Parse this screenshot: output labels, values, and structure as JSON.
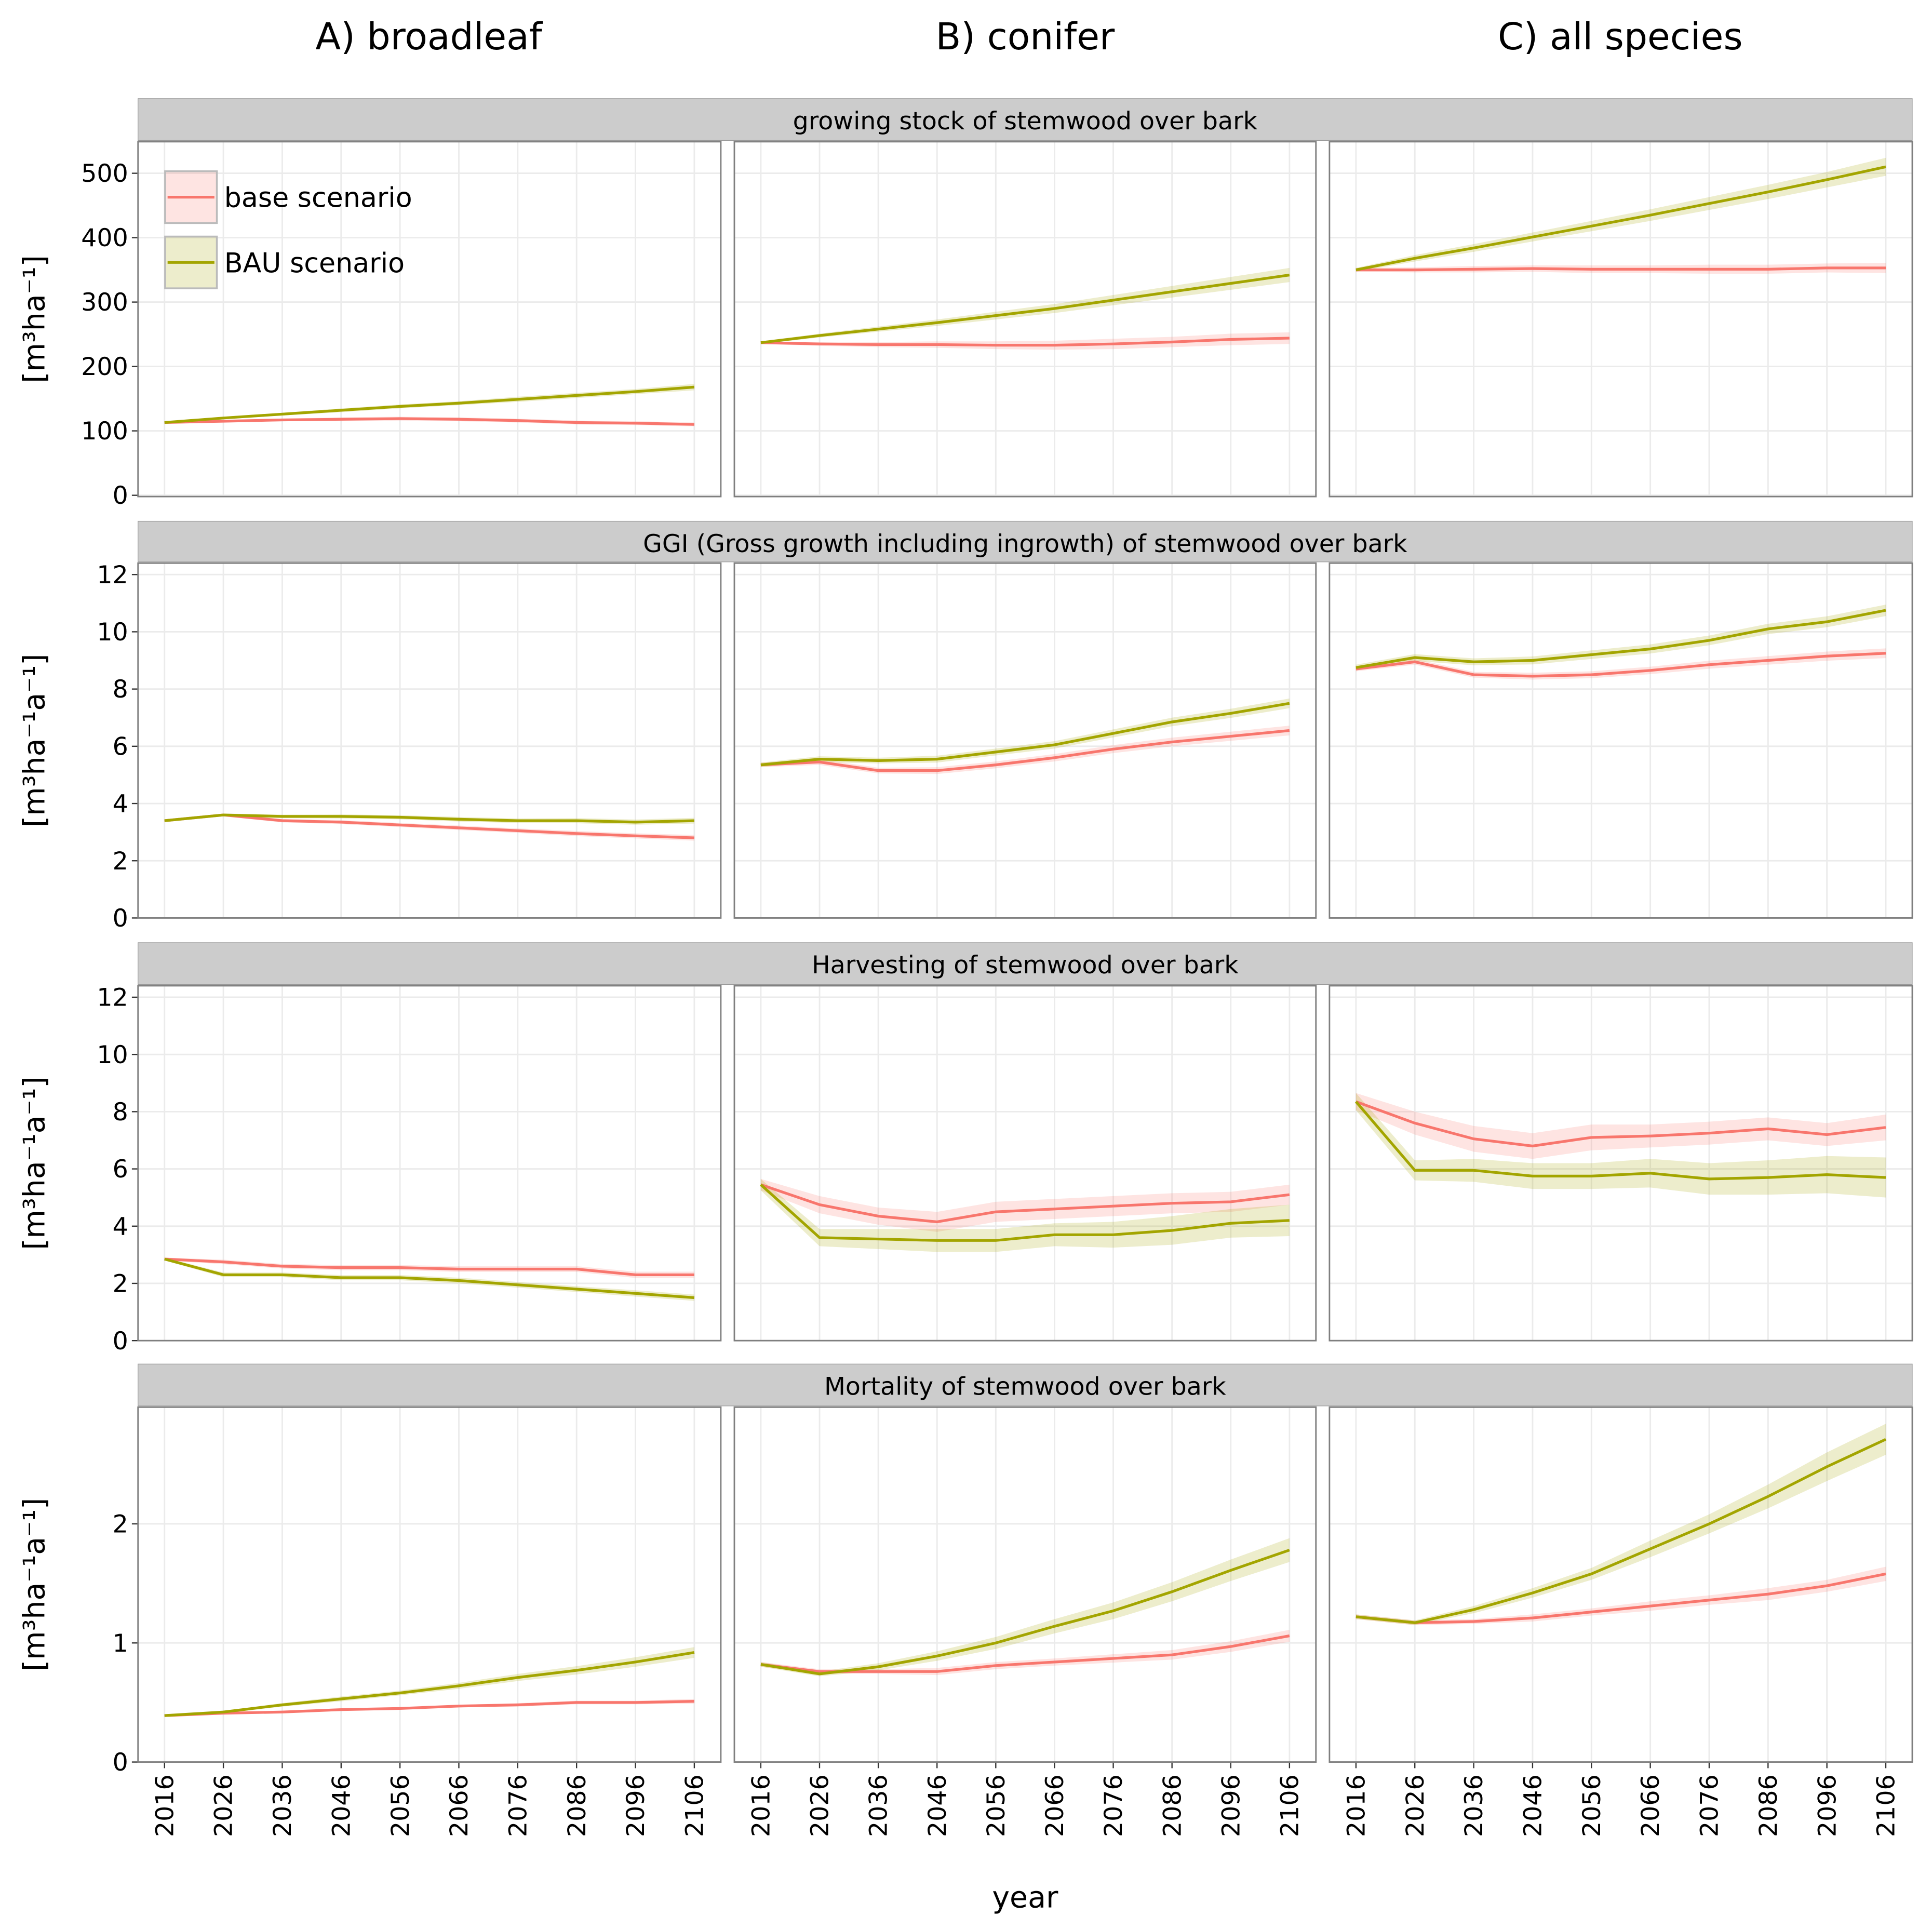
{
  "column_titles": [
    "A) broadleaf",
    "B) conifer",
    "C) all species"
  ],
  "x_label": "year",
  "rows": [
    {
      "strip": "growing stock of stemwood over bark",
      "y_label": "[m³ha⁻¹]"
    },
    {
      "strip": "GGI (Gross growth including ingrowth) of stemwood over bark",
      "y_label": "[m³ha⁻¹a⁻¹]"
    },
    {
      "strip": "Harvesting of stemwood over bark",
      "y_label": "[m³ha⁻¹a⁻¹]"
    },
    {
      "strip": "Mortality of stemwood over bark",
      "y_label": "[m³ha⁻¹a⁻¹]"
    }
  ],
  "legend": {
    "position": "top-left",
    "entries": [
      {
        "name": "base scenario",
        "color": "#F8766D"
      },
      {
        "name": "BAU scenario",
        "color": "#A3A500"
      }
    ]
  },
  "grid": true,
  "chart_data": [
    {
      "type": "line",
      "x": [
        2016,
        2026,
        2036,
        2046,
        2056,
        2066,
        2076,
        2086,
        2096,
        2106
      ],
      "xlim": [
        2011.5,
        2110.5
      ],
      "xticks": [
        2016,
        2026,
        2036,
        2046,
        2056,
        2066,
        2076,
        2086,
        2096,
        2106
      ],
      "ylim": [
        -2,
        549
      ],
      "yticks": [
        0,
        100,
        200,
        300,
        400,
        500
      ],
      "series": [
        {
          "values": [
            113,
            115,
            117,
            118,
            119,
            118,
            116,
            113,
            112,
            110
          ],
          "ci": [
            1,
            2,
            2,
            3,
            3,
            3,
            3,
            3,
            3,
            3
          ]
        },
        {
          "values": [
            113,
            120,
            126,
            132,
            138,
            143,
            149,
            155,
            161,
            168
          ],
          "ci": [
            1,
            2,
            2,
            3,
            3,
            3,
            4,
            4,
            4,
            5
          ]
        }
      ]
    },
    {
      "type": "line",
      "x": [
        2016,
        2026,
        2036,
        2046,
        2056,
        2066,
        2076,
        2086,
        2096,
        2106
      ],
      "xlim": [
        2011.5,
        2110.5
      ],
      "xticks": [
        2016,
        2026,
        2036,
        2046,
        2056,
        2066,
        2076,
        2086,
        2096,
        2106
      ],
      "ylim": [
        -2,
        549
      ],
      "yticks": [
        0,
        100,
        200,
        300,
        400,
        500
      ],
      "series": [
        {
          "values": [
            237,
            235,
            234,
            234,
            233,
            233,
            235,
            238,
            242,
            244
          ],
          "ci": [
            2,
            3,
            4,
            5,
            6,
            7,
            8,
            8,
            9,
            9
          ]
        },
        {
          "values": [
            237,
            248,
            258,
            268,
            279,
            290,
            303,
            316,
            329,
            342
          ],
          "ci": [
            2,
            3,
            4,
            5,
            6,
            7,
            8,
            9,
            10,
            11
          ]
        }
      ]
    },
    {
      "type": "line",
      "x": [
        2016,
        2026,
        2036,
        2046,
        2056,
        2066,
        2076,
        2086,
        2096,
        2106
      ],
      "xlim": [
        2011.5,
        2110.5
      ],
      "xticks": [
        2016,
        2026,
        2036,
        2046,
        2056,
        2066,
        2076,
        2086,
        2096,
        2106
      ],
      "ylim": [
        -2,
        549
      ],
      "yticks": [
        0,
        100,
        200,
        300,
        400,
        500
      ],
      "series": [
        {
          "values": [
            350,
            350,
            351,
            352,
            351,
            351,
            351,
            351,
            353,
            353
          ],
          "ci": [
            3,
            4,
            5,
            5,
            6,
            6,
            7,
            7,
            7,
            8
          ]
        },
        {
          "values": [
            350,
            368,
            384,
            401,
            418,
            435,
            453,
            471,
            490,
            510
          ],
          "ci": [
            3,
            5,
            6,
            7,
            8,
            9,
            10,
            11,
            12,
            14
          ]
        }
      ]
    },
    {
      "type": "line",
      "x": [
        2016,
        2026,
        2036,
        2046,
        2056,
        2066,
        2076,
        2086,
        2096,
        2106
      ],
      "xlim": [
        2011.5,
        2110.5
      ],
      "xticks": [
        2016,
        2026,
        2036,
        2046,
        2056,
        2066,
        2076,
        2086,
        2096,
        2106
      ],
      "ylim": [
        0,
        12.4
      ],
      "yticks": [
        0,
        2,
        4,
        6,
        8,
        10,
        12
      ],
      "series": [
        {
          "values": [
            3.4,
            3.6,
            3.4,
            3.35,
            3.25,
            3.15,
            3.05,
            2.95,
            2.87,
            2.8
          ],
          "ci": [
            0.05,
            0.05,
            0.06,
            0.07,
            0.07,
            0.08,
            0.08,
            0.09,
            0.09,
            0.1
          ]
        },
        {
          "values": [
            3.4,
            3.6,
            3.55,
            3.55,
            3.52,
            3.45,
            3.4,
            3.4,
            3.35,
            3.4
          ],
          "ci": [
            0.05,
            0.05,
            0.06,
            0.07,
            0.07,
            0.08,
            0.08,
            0.09,
            0.09,
            0.1
          ]
        }
      ]
    },
    {
      "type": "line",
      "x": [
        2016,
        2026,
        2036,
        2046,
        2056,
        2066,
        2076,
        2086,
        2096,
        2106
      ],
      "xlim": [
        2011.5,
        2110.5
      ],
      "xticks": [
        2016,
        2026,
        2036,
        2046,
        2056,
        2066,
        2076,
        2086,
        2096,
        2106
      ],
      "ylim": [
        0,
        12.4
      ],
      "yticks": [
        0,
        2,
        4,
        6,
        8,
        10,
        12
      ],
      "series": [
        {
          "values": [
            5.35,
            5.45,
            5.15,
            5.15,
            5.35,
            5.6,
            5.9,
            6.15,
            6.35,
            6.55
          ],
          "ci": [
            0.08,
            0.1,
            0.1,
            0.12,
            0.12,
            0.13,
            0.14,
            0.15,
            0.16,
            0.17
          ]
        },
        {
          "values": [
            5.35,
            5.55,
            5.5,
            5.55,
            5.8,
            6.05,
            6.45,
            6.85,
            7.15,
            7.5
          ],
          "ci": [
            0.08,
            0.1,
            0.1,
            0.12,
            0.12,
            0.13,
            0.14,
            0.15,
            0.16,
            0.17
          ]
        }
      ]
    },
    {
      "type": "line",
      "x": [
        2016,
        2026,
        2036,
        2046,
        2056,
        2066,
        2076,
        2086,
        2096,
        2106
      ],
      "xlim": [
        2011.5,
        2110.5
      ],
      "xticks": [
        2016,
        2026,
        2036,
        2046,
        2056,
        2066,
        2076,
        2086,
        2096,
        2106
      ],
      "ylim": [
        0,
        12.4
      ],
      "yticks": [
        0,
        2,
        4,
        6,
        8,
        10,
        12
      ],
      "series": [
        {
          "values": [
            8.7,
            8.95,
            8.5,
            8.45,
            8.5,
            8.65,
            8.85,
            9.0,
            9.15,
            9.25
          ],
          "ci": [
            0.08,
            0.1,
            0.1,
            0.12,
            0.12,
            0.13,
            0.14,
            0.15,
            0.16,
            0.17
          ]
        },
        {
          "values": [
            8.75,
            9.1,
            8.95,
            9.0,
            9.2,
            9.4,
            9.7,
            10.1,
            10.35,
            10.75
          ],
          "ci": [
            0.1,
            0.12,
            0.12,
            0.14,
            0.15,
            0.16,
            0.17,
            0.18,
            0.19,
            0.2
          ]
        }
      ]
    },
    {
      "type": "line",
      "x": [
        2016,
        2026,
        2036,
        2046,
        2056,
        2066,
        2076,
        2086,
        2096,
        2106
      ],
      "xlim": [
        2011.5,
        2110.5
      ],
      "xticks": [
        2016,
        2026,
        2036,
        2046,
        2056,
        2066,
        2076,
        2086,
        2096,
        2106
      ],
      "ylim": [
        0,
        12.4
      ],
      "yticks": [
        0,
        2,
        4,
        6,
        8,
        10,
        12
      ],
      "series": [
        {
          "values": [
            2.85,
            2.75,
            2.6,
            2.55,
            2.55,
            2.5,
            2.5,
            2.5,
            2.3,
            2.3
          ],
          "ci": [
            0.05,
            0.08,
            0.08,
            0.09,
            0.09,
            0.1,
            0.1,
            0.1,
            0.11,
            0.11
          ]
        },
        {
          "values": [
            2.85,
            2.3,
            2.3,
            2.2,
            2.2,
            2.1,
            1.95,
            1.8,
            1.65,
            1.5
          ],
          "ci": [
            0.05,
            0.08,
            0.08,
            0.09,
            0.09,
            0.1,
            0.1,
            0.1,
            0.11,
            0.11
          ]
        }
      ]
    },
    {
      "type": "line",
      "x": [
        2016,
        2026,
        2036,
        2046,
        2056,
        2066,
        2076,
        2086,
        2096,
        2106
      ],
      "xlim": [
        2011.5,
        2110.5
      ],
      "xticks": [
        2016,
        2026,
        2036,
        2046,
        2056,
        2066,
        2076,
        2086,
        2096,
        2106
      ],
      "ylim": [
        0,
        12.4
      ],
      "yticks": [
        0,
        2,
        4,
        6,
        8,
        10,
        12
      ],
      "series": [
        {
          "values": [
            5.45,
            4.75,
            4.35,
            4.15,
            4.5,
            4.6,
            4.7,
            4.8,
            4.85,
            5.1
          ],
          "ci": [
            0.2,
            0.3,
            0.3,
            0.35,
            0.35,
            0.35,
            0.35,
            0.35,
            0.35,
            0.35
          ]
        },
        {
          "values": [
            5.45,
            3.6,
            3.55,
            3.5,
            3.5,
            3.7,
            3.7,
            3.85,
            4.1,
            4.2
          ],
          "ci": [
            0.2,
            0.3,
            0.35,
            0.4,
            0.4,
            0.4,
            0.45,
            0.5,
            0.5,
            0.55
          ]
        }
      ]
    },
    {
      "type": "line",
      "x": [
        2016,
        2026,
        2036,
        2046,
        2056,
        2066,
        2076,
        2086,
        2096,
        2106
      ],
      "xlim": [
        2011.5,
        2110.5
      ],
      "xticks": [
        2016,
        2026,
        2036,
        2046,
        2056,
        2066,
        2076,
        2086,
        2096,
        2106
      ],
      "ylim": [
        0,
        12.4
      ],
      "yticks": [
        0,
        2,
        4,
        6,
        8,
        10,
        12
      ],
      "series": [
        {
          "values": [
            8.35,
            7.6,
            7.05,
            6.8,
            7.1,
            7.15,
            7.25,
            7.4,
            7.2,
            7.45
          ],
          "ci": [
            0.3,
            0.4,
            0.45,
            0.45,
            0.45,
            0.4,
            0.4,
            0.4,
            0.4,
            0.45
          ]
        },
        {
          "values": [
            8.35,
            5.95,
            5.95,
            5.75,
            5.75,
            5.85,
            5.65,
            5.7,
            5.8,
            5.7
          ],
          "ci": [
            0.3,
            0.35,
            0.4,
            0.45,
            0.45,
            0.5,
            0.55,
            0.6,
            0.65,
            0.7
          ]
        }
      ]
    },
    {
      "type": "line",
      "x": [
        2016,
        2026,
        2036,
        2046,
        2056,
        2066,
        2076,
        2086,
        2096,
        2106
      ],
      "xlim": [
        2011.5,
        2110.5
      ],
      "xticks": [
        2016,
        2026,
        2036,
        2046,
        2056,
        2066,
        2076,
        2086,
        2096,
        2106
      ],
      "ylim": [
        0,
        2.98
      ],
      "yticks": [
        0,
        1,
        2
      ],
      "series": [
        {
          "values": [
            0.39,
            0.41,
            0.42,
            0.44,
            0.45,
            0.47,
            0.48,
            0.5,
            0.5,
            0.51
          ],
          "ci": [
            0.01,
            0.01,
            0.01,
            0.01,
            0.01,
            0.01,
            0.015,
            0.015,
            0.015,
            0.02
          ]
        },
        {
          "values": [
            0.39,
            0.42,
            0.48,
            0.53,
            0.58,
            0.64,
            0.71,
            0.77,
            0.84,
            0.92
          ],
          "ci": [
            0.01,
            0.01,
            0.015,
            0.02,
            0.02,
            0.025,
            0.03,
            0.035,
            0.04,
            0.045
          ]
        }
      ]
    },
    {
      "type": "line",
      "x": [
        2016,
        2026,
        2036,
        2046,
        2056,
        2066,
        2076,
        2086,
        2096,
        2106
      ],
      "xlim": [
        2011.5,
        2110.5
      ],
      "xticks": [
        2016,
        2026,
        2036,
        2046,
        2056,
        2066,
        2076,
        2086,
        2096,
        2106
      ],
      "ylim": [
        0,
        2.98
      ],
      "yticks": [
        0,
        1,
        2
      ],
      "series": [
        {
          "values": [
            0.82,
            0.76,
            0.76,
            0.76,
            0.81,
            0.84,
            0.87,
            0.9,
            0.97,
            1.06
          ],
          "ci": [
            0.02,
            0.02,
            0.02,
            0.03,
            0.03,
            0.03,
            0.035,
            0.04,
            0.045,
            0.05
          ]
        },
        {
          "values": [
            0.82,
            0.74,
            0.8,
            0.89,
            1.0,
            1.14,
            1.27,
            1.43,
            1.61,
            1.78
          ],
          "ci": [
            0.02,
            0.02,
            0.03,
            0.04,
            0.05,
            0.06,
            0.07,
            0.08,
            0.09,
            0.1
          ]
        }
      ]
    },
    {
      "type": "line",
      "x": [
        2016,
        2026,
        2036,
        2046,
        2056,
        2066,
        2076,
        2086,
        2096,
        2106
      ],
      "xlim": [
        2011.5,
        2110.5
      ],
      "xticks": [
        2016,
        2026,
        2036,
        2046,
        2056,
        2066,
        2076,
        2086,
        2096,
        2106
      ],
      "ylim": [
        0,
        2.98
      ],
      "yticks": [
        0,
        1,
        2
      ],
      "series": [
        {
          "values": [
            1.22,
            1.17,
            1.18,
            1.21,
            1.26,
            1.31,
            1.36,
            1.41,
            1.48,
            1.58
          ],
          "ci": [
            0.02,
            0.02,
            0.02,
            0.03,
            0.03,
            0.04,
            0.04,
            0.05,
            0.05,
            0.06
          ]
        },
        {
          "values": [
            1.22,
            1.17,
            1.28,
            1.42,
            1.58,
            1.79,
            2.0,
            2.23,
            2.48,
            2.71
          ],
          "ci": [
            0.02,
            0.02,
            0.03,
            0.04,
            0.05,
            0.07,
            0.08,
            0.1,
            0.12,
            0.13
          ]
        }
      ]
    }
  ]
}
